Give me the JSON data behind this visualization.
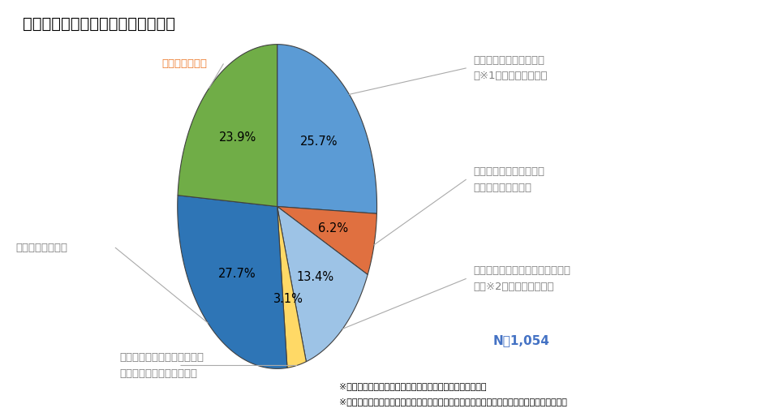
{
  "title": "従業員の社外での副業・兼業の可否",
  "slices": [
    {
      "label_line1": "「雇用による副業・兼業",
      "label_line2": "（※1）」を認めている",
      "value": 25.7,
      "color": "#5B9BD5",
      "pct_color": "#000000"
    },
    {
      "label_line1": "今後「雇用による副業・",
      "label_line2": "兼業」を認める予定",
      "value": 6.2,
      "color": "#E07040",
      "pct_color": "#000000"
    },
    {
      "label_line1": "「個人事業主等としての副業・兼",
      "label_line2": "業（※2）」を認めている",
      "value": 13.4,
      "color": "#9DC3E6",
      "pct_color": "#000000"
    },
    {
      "label_line1": "今後「個人事業主等としての",
      "label_line2": "副業・兼業」を認める予定",
      "value": 3.1,
      "color": "#FFD966",
      "pct_color": "#000000"
    },
    {
      "label_line1": "認める予定はない",
      "label_line2": "",
      "value": 27.7,
      "color": "#2E75B6",
      "pct_color": "#000000"
    },
    {
      "label_line1": "検討していない",
      "label_line2": "",
      "value": 23.9,
      "color": "#70AD47",
      "pct_color": "#000000"
    }
  ],
  "n_label": "N＝1,054",
  "note1": "※１）他社に従業員として雇用されることによる副業・兼業",
  "note2": "※２）自営業やフリーランスを指し、委託契約や請負契約等により副業・兼業を行う場合など",
  "bg_color": "#FFFFFF",
  "title_fontsize": 14,
  "slice_fontsize": 10.5,
  "label_fontsize": 9.5,
  "note_fontsize": 8,
  "label_color": "#808080",
  "label5_color": "#ED7D31",
  "border_color": "#404040",
  "n_color": "#4472C4"
}
